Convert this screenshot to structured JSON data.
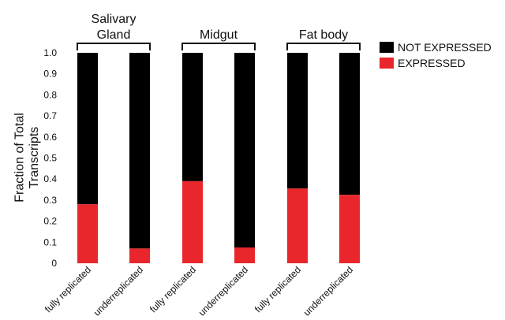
{
  "chart_data": {
    "type": "bar",
    "stacked": true,
    "ylabel": "Fraction of Total Transcripts",
    "ylim": [
      0,
      1.0
    ],
    "yticks": [
      "0",
      "0.1",
      "0.2",
      "0.3",
      "0.4",
      "0.5",
      "0.6",
      "0.7",
      "0.8",
      "0.9",
      "1.0"
    ],
    "categories": [
      "fully replicated",
      "underreplicated",
      "fully replicated",
      "underreplicated",
      "fully replicated",
      "underreplicated"
    ],
    "groups": [
      {
        "label_lines": [
          "Salivary",
          "Gland"
        ],
        "categories": [
          0,
          1
        ]
      },
      {
        "label_lines": [
          "Midgut"
        ],
        "categories": [
          2,
          3
        ]
      },
      {
        "label_lines": [
          "Fat body"
        ],
        "categories": [
          4,
          5
        ]
      }
    ],
    "series": [
      {
        "name": "EXPRESSED",
        "color": "#e8262b",
        "values": [
          0.28,
          0.07,
          0.39,
          0.075,
          0.355,
          0.325
        ]
      },
      {
        "name": "NOT EXPRESSED",
        "color": "#000000",
        "values": [
          0.72,
          0.93,
          0.61,
          0.925,
          0.645,
          0.675
        ]
      }
    ],
    "legend": {
      "position": "top-right",
      "order": [
        "NOT EXPRESSED",
        "EXPRESSED"
      ]
    },
    "grid": false
  }
}
